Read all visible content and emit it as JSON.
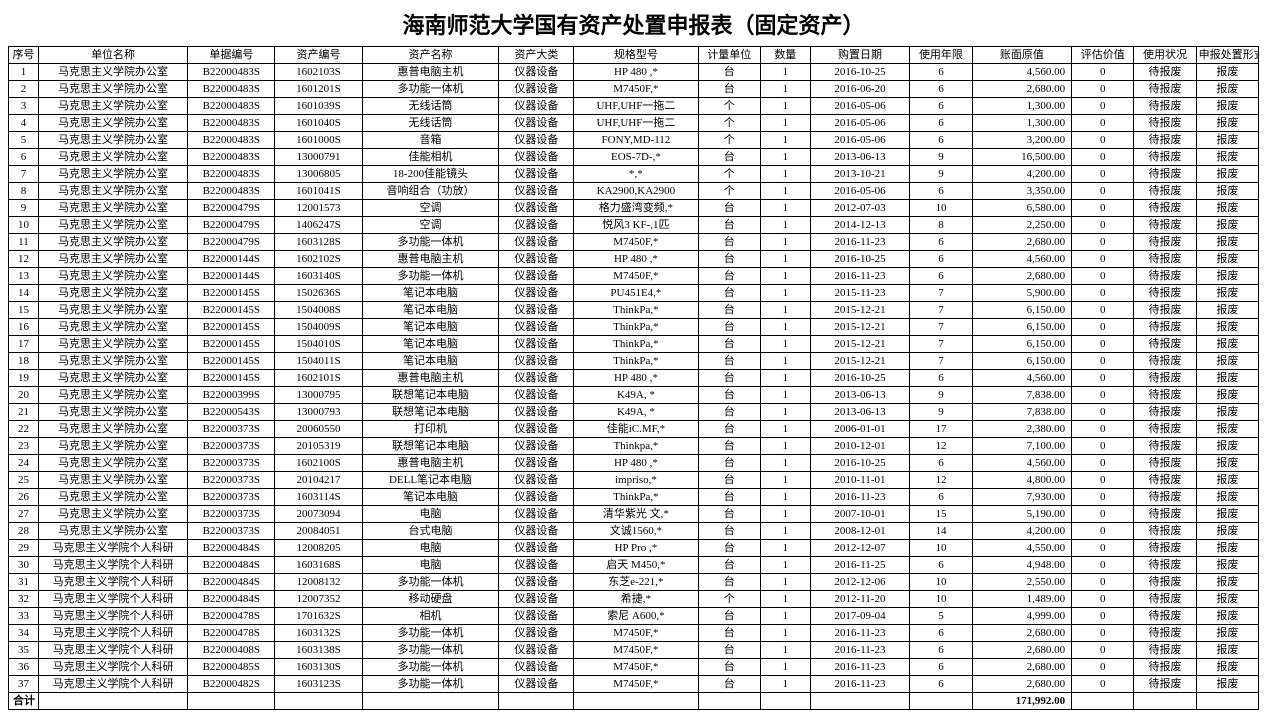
{
  "title": "海南师范大学国有资产处置申报表（固定资产）",
  "columns": [
    "序号",
    "单位名称",
    "单据编号",
    "资产编号",
    "资产名称",
    "资产大类",
    "规格型号",
    "计量单位",
    "数量",
    "购置日期",
    "使用年限",
    "账面原值",
    "评估价值",
    "使用状况",
    "申报处置形式"
  ],
  "total_label": "合计",
  "total_value": "171,992.00",
  "rows": [
    [
      "1",
      "马克思主义学院办公室",
      "B22000483S",
      "1602103S",
      "惠普电脑主机",
      "仪器设备",
      "HP 480 ,*",
      "台",
      "1",
      "2016-10-25",
      "6",
      "4,560.00",
      "0",
      "待报废",
      "报废"
    ],
    [
      "2",
      "马克思主义学院办公室",
      "B22000483S",
      "1601201S",
      "多功能一体机",
      "仪器设备",
      "M7450F,*",
      "台",
      "1",
      "2016-06-20",
      "6",
      "2,680.00",
      "0",
      "待报废",
      "报废"
    ],
    [
      "3",
      "马克思主义学院办公室",
      "B22000483S",
      "1601039S",
      "无线话筒",
      "仪器设备",
      "UHF,UHF一拖二",
      "个",
      "1",
      "2016-05-06",
      "6",
      "1,300.00",
      "0",
      "待报废",
      "报废"
    ],
    [
      "4",
      "马克思主义学院办公室",
      "B22000483S",
      "1601040S",
      "无线话筒",
      "仪器设备",
      "UHF,UHF一拖二",
      "个",
      "1",
      "2016-05-06",
      "6",
      "1,300.00",
      "0",
      "待报废",
      "报废"
    ],
    [
      "5",
      "马克思主义学院办公室",
      "B22000483S",
      "1601000S",
      "音箱",
      "仪器设备",
      "FONY,MD-112",
      "个",
      "1",
      "2016-05-06",
      "6",
      "3,200.00",
      "0",
      "待报废",
      "报废"
    ],
    [
      "6",
      "马克思主义学院办公室",
      "B22000483S",
      "13000791",
      "佳能相机",
      "仪器设备",
      "EOS-7D-,*",
      "台",
      "1",
      "2013-06-13",
      "9",
      "16,500.00",
      "0",
      "待报废",
      "报废"
    ],
    [
      "7",
      "马克思主义学院办公室",
      "B22000483S",
      "13006805",
      "18-200佳能镜头",
      "仪器设备",
      "*,*",
      "个",
      "1",
      "2013-10-21",
      "9",
      "4,200.00",
      "0",
      "待报废",
      "报废"
    ],
    [
      "8",
      "马克思主义学院办公室",
      "B22000483S",
      "1601041S",
      "音响组合（功放）",
      "仪器设备",
      "KA2900,KA2900",
      "个",
      "1",
      "2016-05-06",
      "6",
      "3,350.00",
      "0",
      "待报废",
      "报废"
    ],
    [
      "9",
      "马克思主义学院办公室",
      "B22000479S",
      "12001573",
      "空调",
      "仪器设备",
      "格力盛湾变频,*",
      "台",
      "1",
      "2012-07-03",
      "10",
      "6,580.00",
      "0",
      "待报废",
      "报废"
    ],
    [
      "10",
      "马克思主义学院办公室",
      "B22000479S",
      "1406247S",
      "空调",
      "仪器设备",
      "悦风3 KF-,1匹",
      "台",
      "1",
      "2014-12-13",
      "8",
      "2,250.00",
      "0",
      "待报废",
      "报废"
    ],
    [
      "11",
      "马克思主义学院办公室",
      "B22000479S",
      "1603128S",
      "多功能一体机",
      "仪器设备",
      "M7450F,*",
      "台",
      "1",
      "2016-11-23",
      "6",
      "2,680.00",
      "0",
      "待报废",
      "报废"
    ],
    [
      "12",
      "马克思主义学院办公室",
      "B22000144S",
      "1602102S",
      "惠普电脑主机",
      "仪器设备",
      "HP 480 ,*",
      "台",
      "1",
      "2016-10-25",
      "6",
      "4,560.00",
      "0",
      "待报废",
      "报废"
    ],
    [
      "13",
      "马克思主义学院办公室",
      "B22000144S",
      "1603140S",
      "多功能一体机",
      "仪器设备",
      "M7450F,*",
      "台",
      "1",
      "2016-11-23",
      "6",
      "2,680.00",
      "0",
      "待报废",
      "报废"
    ],
    [
      "14",
      "马克思主义学院办公室",
      "B22000145S",
      "1502636S",
      "笔记本电脑",
      "仪器设备",
      "PU451E4,*",
      "台",
      "1",
      "2015-11-23",
      "7",
      "5,900.00",
      "0",
      "待报废",
      "报废"
    ],
    [
      "15",
      "马克思主义学院办公室",
      "B22000145S",
      "1504008S",
      "笔记本电脑",
      "仪器设备",
      "ThinkPa,*",
      "台",
      "1",
      "2015-12-21",
      "7",
      "6,150.00",
      "0",
      "待报废",
      "报废"
    ],
    [
      "16",
      "马克思主义学院办公室",
      "B22000145S",
      "1504009S",
      "笔记本电脑",
      "仪器设备",
      "ThinkPa,*",
      "台",
      "1",
      "2015-12-21",
      "7",
      "6,150.00",
      "0",
      "待报废",
      "报废"
    ],
    [
      "17",
      "马克思主义学院办公室",
      "B22000145S",
      "1504010S",
      "笔记本电脑",
      "仪器设备",
      "ThinkPa,*",
      "台",
      "1",
      "2015-12-21",
      "7",
      "6,150.00",
      "0",
      "待报废",
      "报废"
    ],
    [
      "18",
      "马克思主义学院办公室",
      "B22000145S",
      "1504011S",
      "笔记本电脑",
      "仪器设备",
      "ThinkPa,*",
      "台",
      "1",
      "2015-12-21",
      "7",
      "6,150.00",
      "0",
      "待报废",
      "报废"
    ],
    [
      "19",
      "马克思主义学院办公室",
      "B22000145S",
      "1602101S",
      "惠普电脑主机",
      "仪器设备",
      "HP 480 ,*",
      "台",
      "1",
      "2016-10-25",
      "6",
      "4,560.00",
      "0",
      "待报废",
      "报废"
    ],
    [
      "20",
      "马克思主义学院办公室",
      "B22000399S",
      "13000795",
      "联想笔记本电脑",
      "仪器设备",
      "K49A, *",
      "台",
      "1",
      "2013-06-13",
      "9",
      "7,838.00",
      "0",
      "待报废",
      "报废"
    ],
    [
      "21",
      "马克思主义学院办公室",
      "B22000543S",
      "13000793",
      "联想笔记本电脑",
      "仪器设备",
      "K49A, *",
      "台",
      "1",
      "2013-06-13",
      "9",
      "7,838.00",
      "0",
      "待报废",
      "报废"
    ],
    [
      "22",
      "马克思主义学院办公室",
      "B22000373S",
      "20060550",
      "打印机",
      "仪器设备",
      "佳能iC.MF,*",
      "台",
      "1",
      "2006-01-01",
      "17",
      "2,380.00",
      "0",
      "待报废",
      "报废"
    ],
    [
      "23",
      "马克思主义学院办公室",
      "B22000373S",
      "20105319",
      "联想笔记本电脑",
      "仪器设备",
      "Thinkpa,*",
      "台",
      "1",
      "2010-12-01",
      "12",
      "7,100.00",
      "0",
      "待报废",
      "报废"
    ],
    [
      "24",
      "马克思主义学院办公室",
      "B22000373S",
      "1602100S",
      "惠普电脑主机",
      "仪器设备",
      "HP 480 ,*",
      "台",
      "1",
      "2016-10-25",
      "6",
      "4,560.00",
      "0",
      "待报废",
      "报废"
    ],
    [
      "25",
      "马克思主义学院办公室",
      "B22000373S",
      "20104217",
      "DELL笔记本电脑",
      "仪器设备",
      "impriso,*",
      "台",
      "1",
      "2010-11-01",
      "12",
      "4,800.00",
      "0",
      "待报废",
      "报废"
    ],
    [
      "26",
      "马克思主义学院办公室",
      "B22000373S",
      "1603114S",
      "笔记本电脑",
      "仪器设备",
      "ThinkPa,*",
      "台",
      "1",
      "2016-11-23",
      "6",
      "7,930.00",
      "0",
      "待报废",
      "报废"
    ],
    [
      "27",
      "马克思主义学院办公室",
      "B22000373S",
      "20073094",
      "电脑",
      "仪器设备",
      "清华紫光 文,*",
      "台",
      "1",
      "2007-10-01",
      "15",
      "5,190.00",
      "0",
      "待报废",
      "报废"
    ],
    [
      "28",
      "马克思主义学院办公室",
      "B22000373S",
      "20084051",
      "台式电脑",
      "仪器设备",
      "文诚1560,*",
      "台",
      "1",
      "2008-12-01",
      "14",
      "4,200.00",
      "0",
      "待报废",
      "报废"
    ],
    [
      "29",
      "马克思主义学院个人科研",
      "B22000484S",
      "12008205",
      "电脑",
      "仪器设备",
      "HP Pro ,*",
      "台",
      "1",
      "2012-12-07",
      "10",
      "4,550.00",
      "0",
      "待报废",
      "报废"
    ],
    [
      "30",
      "马克思主义学院个人科研",
      "B22000484S",
      "1603168S",
      "电脑",
      "仪器设备",
      "启天 M450,*",
      "台",
      "1",
      "2016-11-25",
      "6",
      "4,948.00",
      "0",
      "待报废",
      "报废"
    ],
    [
      "31",
      "马克思主义学院个人科研",
      "B22000484S",
      "12008132",
      "多功能一体机",
      "仪器设备",
      "东芝e-221,*",
      "台",
      "1",
      "2012-12-06",
      "10",
      "2,550.00",
      "0",
      "待报废",
      "报废"
    ],
    [
      "32",
      "马克思主义学院个人科研",
      "B22000484S",
      "12007352",
      "移动硬盘",
      "仪器设备",
      "希捷,*",
      "个",
      "1",
      "2012-11-20",
      "10",
      "1,489.00",
      "0",
      "待报废",
      "报废"
    ],
    [
      "33",
      "马克思主义学院个人科研",
      "B22000478S",
      "1701632S",
      "相机",
      "仪器设备",
      "索尼 A600,*",
      "台",
      "1",
      "2017-09-04",
      "5",
      "4,999.00",
      "0",
      "待报废",
      "报废"
    ],
    [
      "34",
      "马克思主义学院个人科研",
      "B22000478S",
      "1603132S",
      "多功能一体机",
      "仪器设备",
      "M7450F,*",
      "台",
      "1",
      "2016-11-23",
      "6",
      "2,680.00",
      "0",
      "待报废",
      "报废"
    ],
    [
      "35",
      "马克思主义学院个人科研",
      "B22000408S",
      "1603138S",
      "多功能一体机",
      "仪器设备",
      "M7450F,*",
      "台",
      "1",
      "2016-11-23",
      "6",
      "2,680.00",
      "0",
      "待报废",
      "报废"
    ],
    [
      "36",
      "马克思主义学院个人科研",
      "B22000485S",
      "1603130S",
      "多功能一体机",
      "仪器设备",
      "M7450F,*",
      "台",
      "1",
      "2016-11-23",
      "6",
      "2,680.00",
      "0",
      "待报废",
      "报废"
    ],
    [
      "37",
      "马克思主义学院个人科研",
      "B22000482S",
      "1603123S",
      "多功能一体机",
      "仪器设备",
      "M7450F,*",
      "台",
      "1",
      "2016-11-23",
      "6",
      "2,680.00",
      "0",
      "待报废",
      "报废"
    ]
  ]
}
